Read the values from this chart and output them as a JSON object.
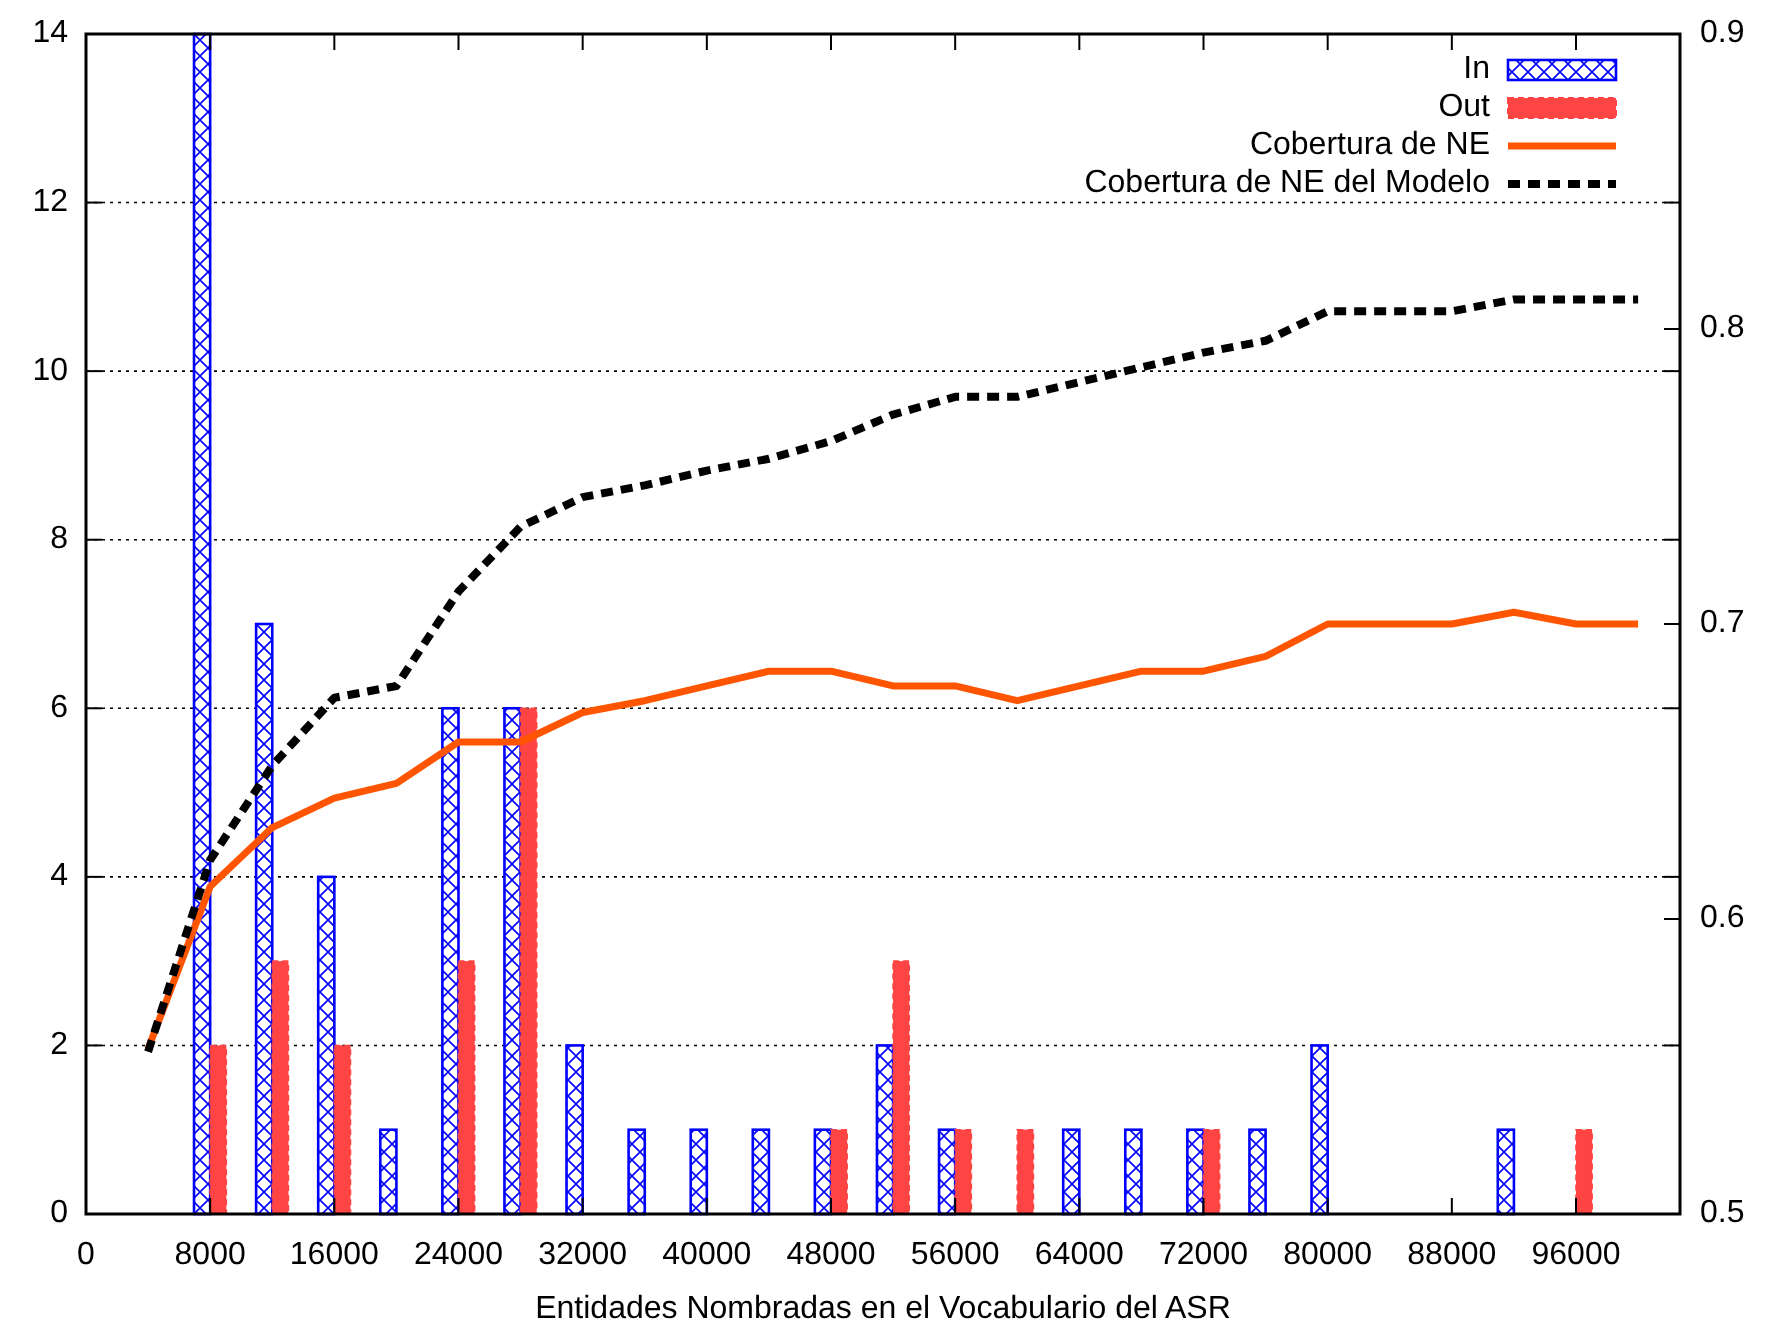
{
  "chart_data": {
    "type": "bar",
    "xlabel": "Entidades Nombradas en el Vocabulario del ASR",
    "x": [
      4000,
      8000,
      12000,
      16000,
      20000,
      24000,
      28000,
      32000,
      36000,
      40000,
      44000,
      48000,
      52000,
      56000,
      60000,
      64000,
      68000,
      72000,
      76000,
      80000,
      84000,
      88000,
      92000,
      96000,
      100000
    ],
    "series": [
      {
        "name": "In",
        "color": "#0000ff",
        "values": [
          0,
          14,
          7,
          4,
          1,
          6,
          6,
          2,
          1,
          1,
          1,
          1,
          2,
          1,
          0,
          1,
          1,
          1,
          1,
          2,
          0,
          0,
          1,
          0,
          0
        ]
      },
      {
        "name": "Out",
        "color": "#ff4444",
        "values": [
          0,
          2,
          3,
          2,
          0,
          3,
          6,
          0,
          0,
          0,
          0,
          1,
          3,
          1,
          1,
          0,
          0,
          1,
          0,
          0,
          0,
          0,
          0,
          1,
          0
        ]
      },
      {
        "name": "Cobertura de NE",
        "type": "line",
        "axis": "y2",
        "color": "#ff5500",
        "line_style": "solid",
        "values": [
          0.556,
          0.611,
          0.631,
          0.641,
          0.646,
          0.66,
          0.66,
          0.67,
          0.674,
          0.679,
          0.684,
          0.684,
          0.679,
          0.679,
          0.674,
          0.679,
          0.684,
          0.684,
          0.689,
          0.7,
          0.7,
          0.7,
          0.704,
          0.7,
          0.7
        ]
      },
      {
        "name": "Cobertura de NE del Modelo",
        "type": "line",
        "axis": "y2",
        "color": "#000000",
        "line_style": "dashed",
        "values": [
          0.555,
          0.62,
          0.652,
          0.675,
          0.679,
          0.711,
          0.733,
          0.743,
          0.747,
          0.752,
          0.756,
          0.762,
          0.771,
          0.777,
          0.777,
          0.782,
          0.787,
          0.792,
          0.796,
          0.806,
          0.806,
          0.806,
          0.81,
          0.81,
          0.81
        ]
      }
    ],
    "xlim": [
      0,
      102700
    ],
    "xticks": [
      0,
      8000,
      16000,
      24000,
      32000,
      40000,
      48000,
      56000,
      64000,
      72000,
      80000,
      88000,
      96000
    ],
    "ylim": [
      0,
      14
    ],
    "yticks": [
      0,
      2,
      4,
      6,
      8,
      10,
      12,
      14
    ],
    "y2lim": [
      0.5,
      0.9
    ],
    "y2ticks": [
      0.5,
      0.6,
      0.7,
      0.8,
      0.9
    ],
    "grid": "y",
    "legend": "top right"
  }
}
